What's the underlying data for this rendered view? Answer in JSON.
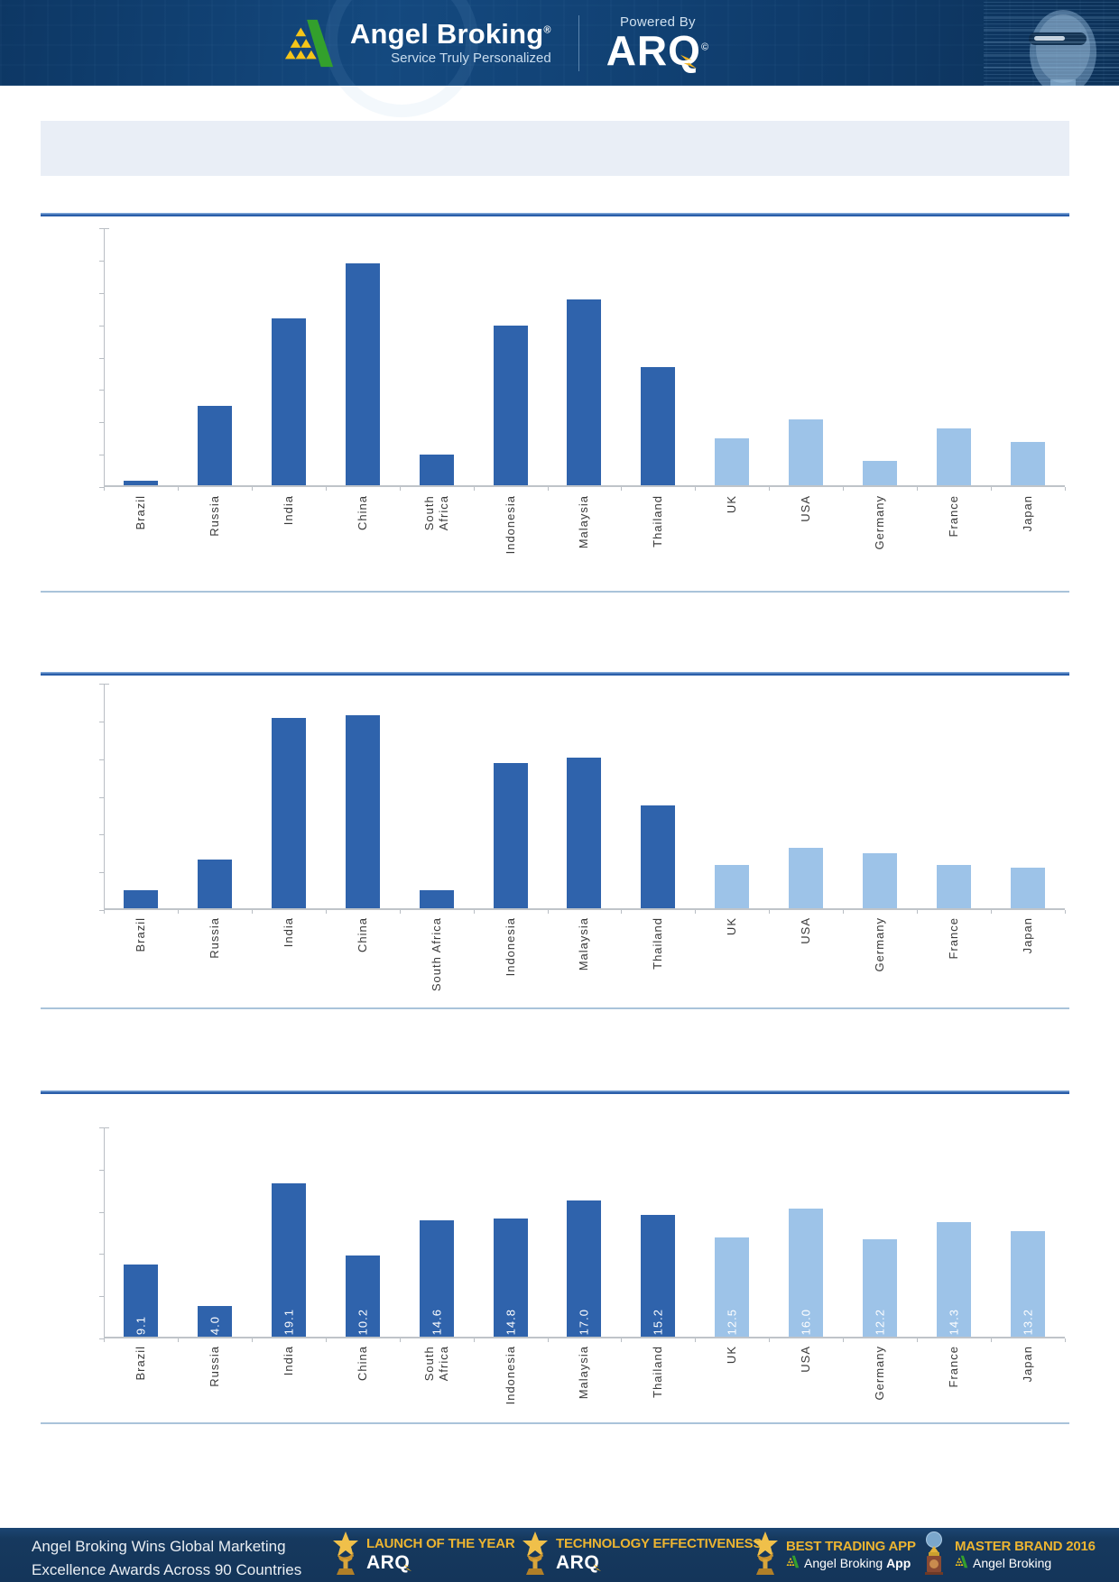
{
  "header": {
    "brand": "Angel Broking",
    "reg": "®",
    "tagline": "Service Truly Personalized",
    "powered_by": "Powered By",
    "arq_logo": "ARQ",
    "arq_reg": "©"
  },
  "title_band": {
    "text": ""
  },
  "colors": {
    "bar_dark": "#2f63ac",
    "bar_light": "#9dc3e8",
    "separator_thick": "#2a5ea9",
    "separator_thin": "#a9c3da",
    "header_navy": "#14497f",
    "footer_navy": "#16395e",
    "award_gold": "#ecb431",
    "axis_gray": "#b9bec4"
  },
  "chart_data": [
    {
      "type": "bar",
      "title": "",
      "xlabel": "",
      "ylabel": "",
      "categories": [
        "Brazil",
        "Russia",
        "India",
        "China",
        "South Africa",
        "Indonesia",
        "Malaysia",
        "Thailand",
        "UK",
        "USA",
        "Germany",
        "France",
        "Japan"
      ],
      "values": [
        0.2,
        2.5,
        5.2,
        6.9,
        1.0,
        5.0,
        5.8,
        3.7,
        1.5,
        2.1,
        0.8,
        1.8,
        1.4
      ],
      "ylim": [
        0,
        8
      ],
      "tick_intervals": 8,
      "dark_count": 8,
      "data_labels": false,
      "label_wrap": "two-line",
      "grid": false,
      "legend": "none"
    },
    {
      "type": "bar",
      "title": "",
      "xlabel": "",
      "ylabel": "",
      "categories": [
        "Brazil",
        "Russia",
        "India",
        "China",
        "South Africa",
        "Indonesia",
        "Malaysia",
        "Thailand",
        "UK",
        "USA",
        "Germany",
        "France",
        "Japan"
      ],
      "values": [
        0.7,
        1.8,
        6.8,
        6.9,
        0.7,
        5.2,
        5.4,
        3.7,
        1.6,
        2.2,
        2.0,
        1.6,
        1.5
      ],
      "ylim": [
        0,
        8
      ],
      "tick_intervals": 6,
      "dark_count": 8,
      "data_labels": false,
      "label_wrap": "single-line",
      "grid": false,
      "legend": "none"
    },
    {
      "type": "bar",
      "title": "",
      "xlabel": "",
      "ylabel": "",
      "categories": [
        "Brazil",
        "Russia",
        "India",
        "China",
        "South Africa",
        "Indonesia",
        "Malaysia",
        "Thailand",
        "UK",
        "USA",
        "Germany",
        "France",
        "Japan"
      ],
      "values": [
        9.1,
        4.0,
        19.1,
        10.2,
        14.6,
        14.8,
        17.0,
        15.2,
        12.5,
        16.0,
        12.2,
        14.3,
        13.2
      ],
      "ylim": [
        0,
        26
      ],
      "tick_intervals": 5,
      "dark_count": 8,
      "data_labels": true,
      "label_wrap": "two-line",
      "grid": false,
      "legend": "none"
    }
  ],
  "footer": {
    "message_line1": "Angel Broking Wins Global Marketing",
    "message_line2": "Excellence Awards Across 90 Countries",
    "awards": [
      {
        "icon": "star-trophy-icon",
        "title": "LAUNCH OF THE YEAR",
        "brand_type": "arq",
        "brand": "ARQ"
      },
      {
        "icon": "star-trophy-icon",
        "title": "TECHNOLOGY EFFECTIVENESS",
        "brand_type": "arq",
        "brand": "ARQ"
      },
      {
        "icon": "star-trophy-icon",
        "title": "BEST TRADING APP",
        "brand_type": "angel",
        "brand": "Angel Broking",
        "brand_bold": "App"
      },
      {
        "icon": "globe-trophy-icon",
        "title": "MASTER BRAND 2016",
        "brand_type": "angel",
        "brand": "Angel Broking",
        "brand_bold": ""
      }
    ]
  }
}
